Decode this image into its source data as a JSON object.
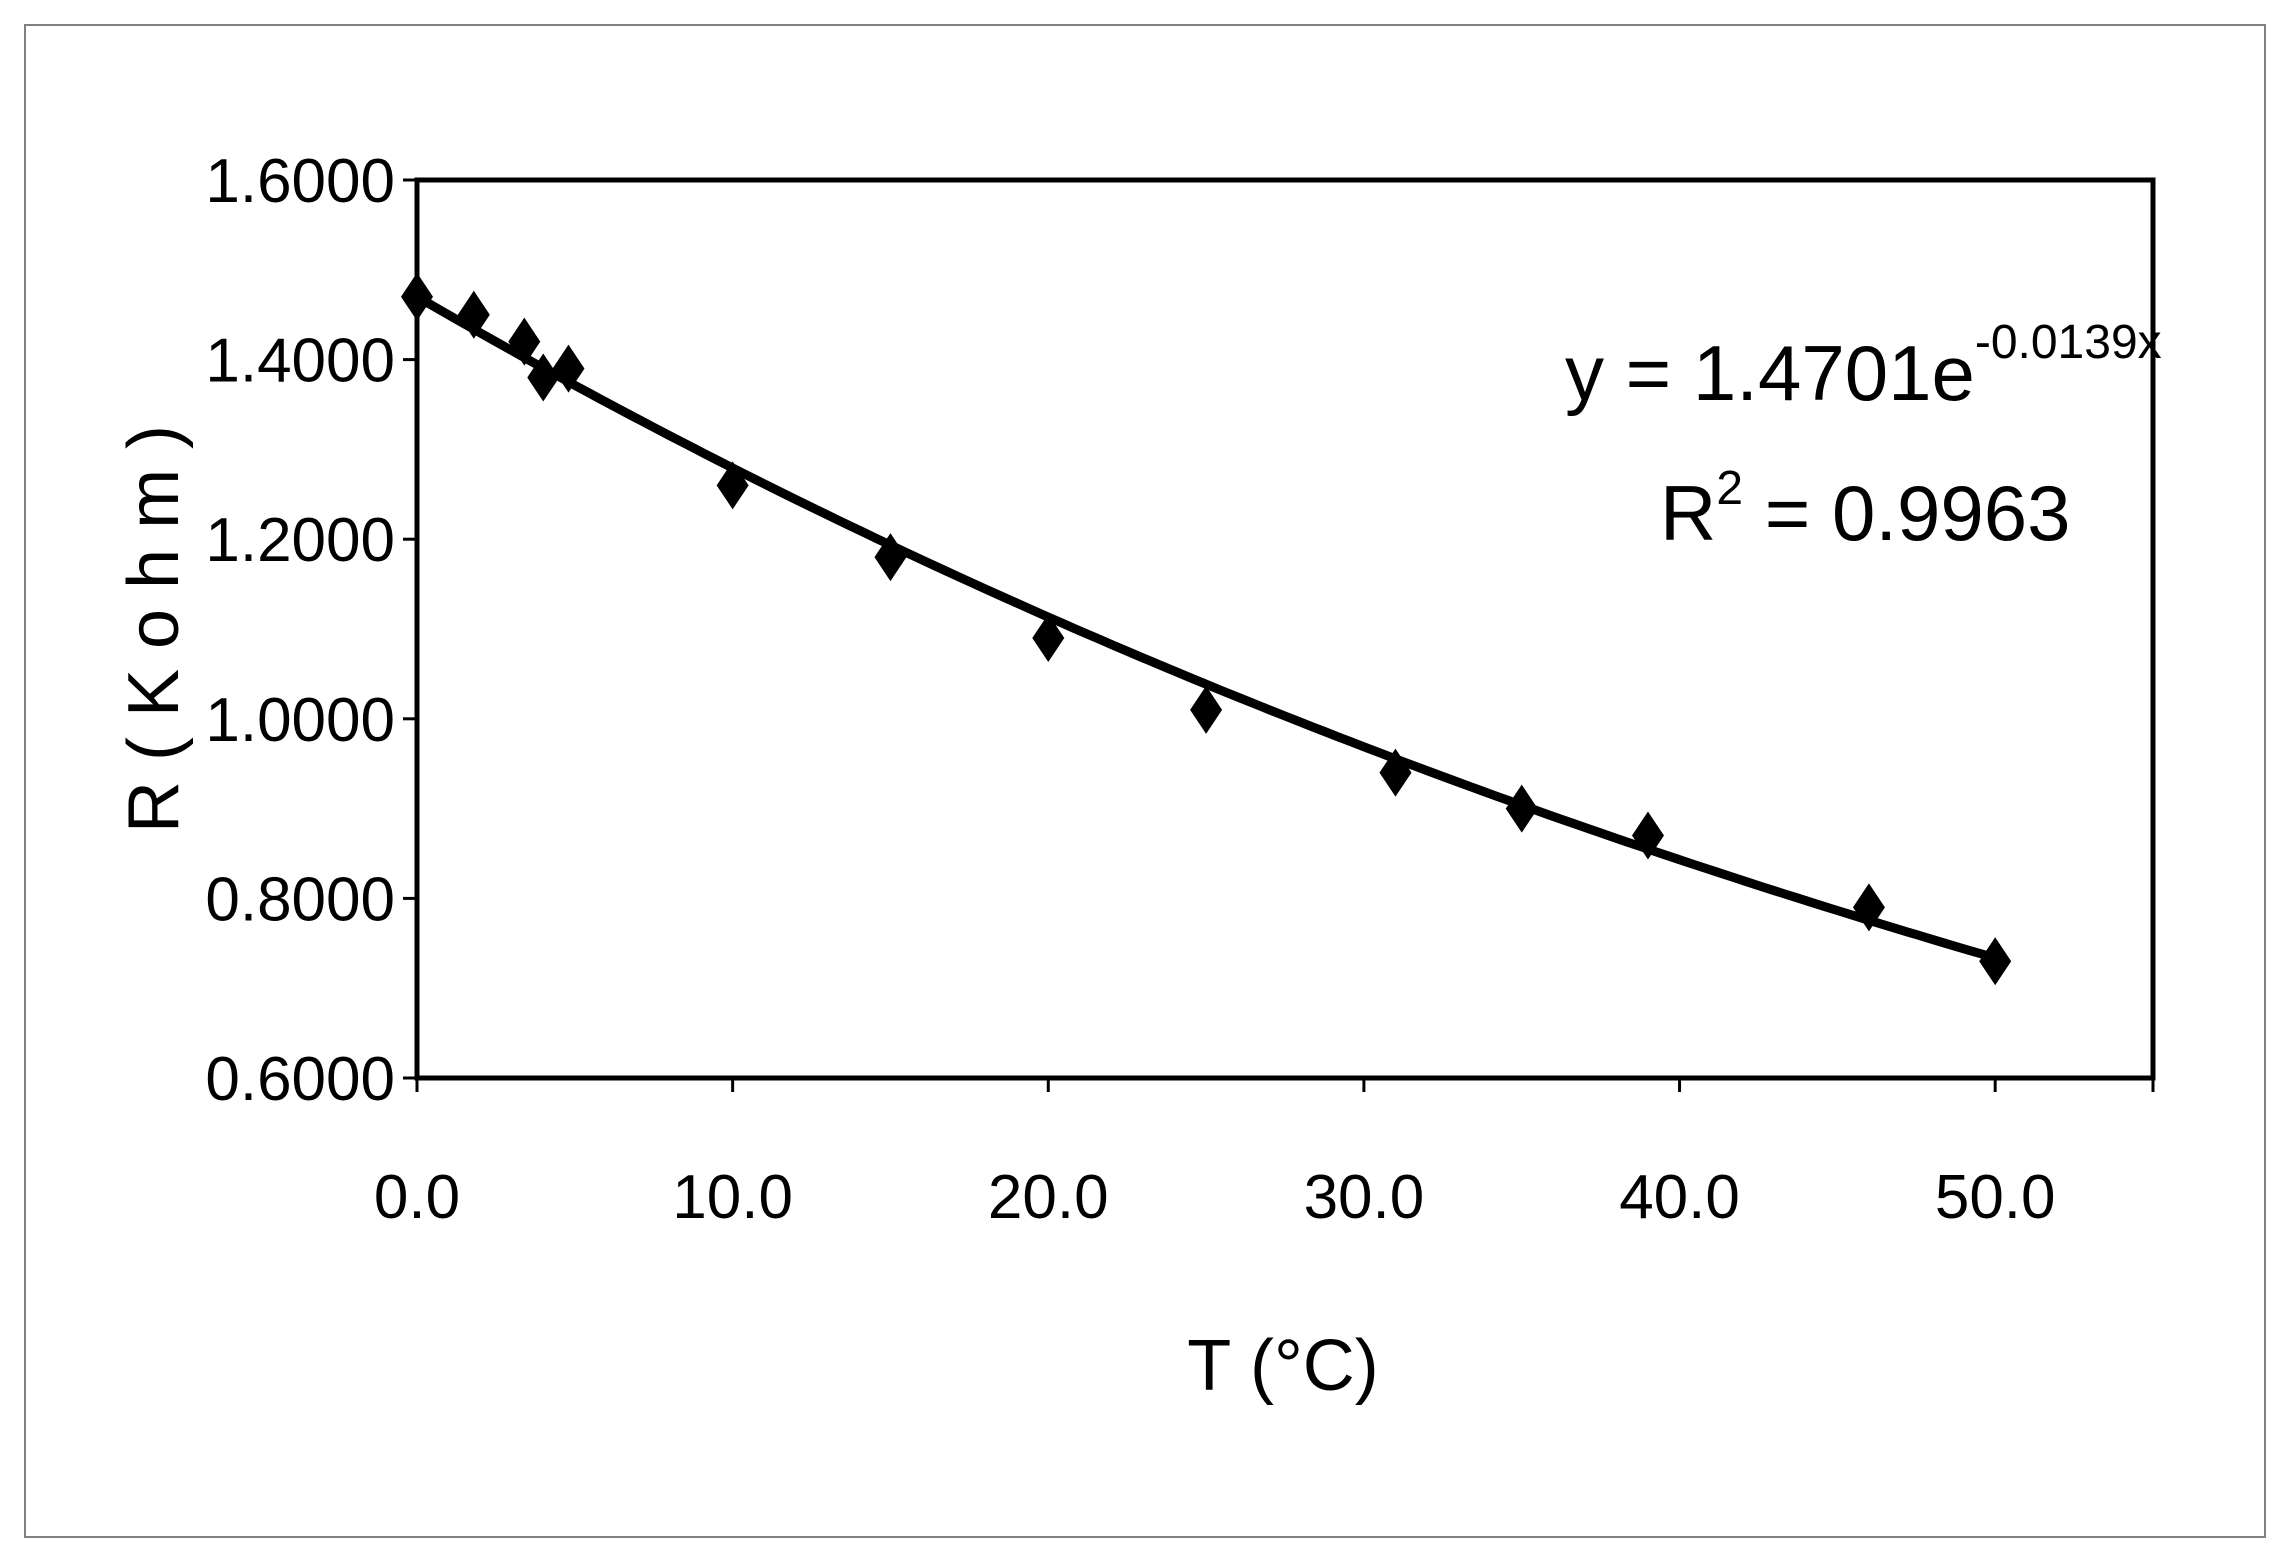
{
  "chart_data": {
    "type": "scatter",
    "xlabel": "T (°C)",
    "ylabel": "R ( K o h m )",
    "xlim": [
      0,
      55
    ],
    "ylim": [
      0.6,
      1.6
    ],
    "x_ticks": [
      "0.0",
      "10.0",
      "20.0",
      "30.0",
      "40.0",
      "50.0"
    ],
    "y_ticks": [
      "1.6000",
      "1.4000",
      "1.2000",
      "1.0000",
      "0.8000",
      "0.6000"
    ],
    "grid": false,
    "legend": "none",
    "points": [
      {
        "x": 0.0,
        "y": 1.47
      },
      {
        "x": 1.8,
        "y": 1.45
      },
      {
        "x": 3.4,
        "y": 1.42
      },
      {
        "x": 4.0,
        "y": 1.38
      },
      {
        "x": 4.8,
        "y": 1.39
      },
      {
        "x": 10.0,
        "y": 1.26
      },
      {
        "x": 15.0,
        "y": 1.18
      },
      {
        "x": 20.0,
        "y": 1.09
      },
      {
        "x": 25.0,
        "y": 1.01
      },
      {
        "x": 31.0,
        "y": 0.94
      },
      {
        "x": 35.0,
        "y": 0.9
      },
      {
        "x": 39.0,
        "y": 0.87
      },
      {
        "x": 46.0,
        "y": 0.79
      },
      {
        "x": 50.0,
        "y": 0.73
      }
    ],
    "trendline": {
      "type": "exponential",
      "a": 1.4701,
      "b": -0.0139,
      "x_range": [
        0,
        50
      ]
    },
    "annotation": {
      "equation_main": "y = 1.4701e",
      "equation_exp": "-0.0139x",
      "r2_prefix": "R",
      "r2_sup": "2",
      "r2_value": " = 0.9963"
    },
    "colors": {
      "marker": "#000000",
      "line": "#000000",
      "frame": "#000000",
      "background": "#ffffff"
    }
  }
}
